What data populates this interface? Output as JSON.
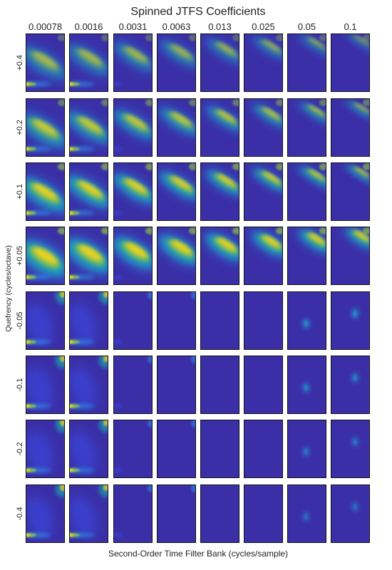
{
  "chart_data": {
    "type": "heatmap",
    "title": "Spinned JTFS Coefficients",
    "xlabel": "Second-Order Time Filter Bank (cycles/sample)",
    "ylabel": "Quefrency (cycles/octave)",
    "columns": [
      "0.00078",
      "0.0016",
      "0.0031",
      "0.0063",
      "0.013",
      "0.025",
      "0.05",
      "0.1"
    ],
    "rows": [
      "+0.4",
      "+0.2",
      "+0.1",
      "+0.05",
      "-0.05",
      "-0.1",
      "-0.2",
      "-0.4"
    ],
    "colormap": [
      "#3a2fa6",
      "#3a4ff0",
      "#2f8ce6",
      "#17b4b0",
      "#8cc24a",
      "#f4d41e"
    ],
    "background_color": "#3a2fa6",
    "grid": false
  }
}
